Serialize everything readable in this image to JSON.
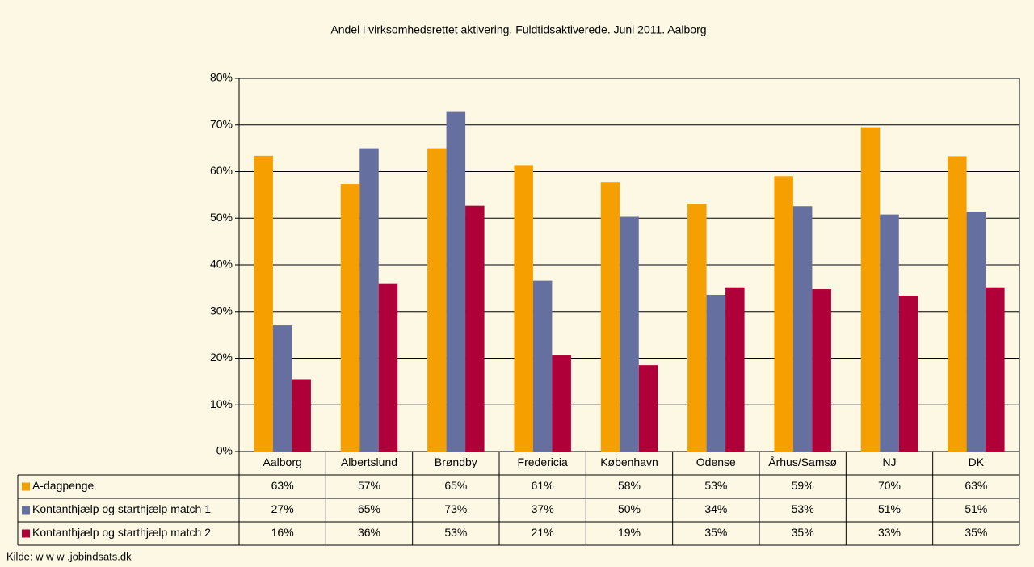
{
  "chart_data": {
    "type": "bar",
    "title": "Andel i virksomhedsrettet aktivering. Fuldtidsaktiverede. Juni 2011. Aalborg",
    "source": "Kilde: w w w .jobindsats.dk",
    "categories": [
      "Aalborg",
      "Albertslund",
      "Brøndby",
      "Fredericia",
      "København",
      "Odense",
      "Århus/Samsø",
      "NJ",
      "DK"
    ],
    "series": [
      {
        "name": "A-dagpenge",
        "color": "#f5a000",
        "values": [
          63.4,
          57.3,
          65,
          61.4,
          57.8,
          53.1,
          59,
          69.5,
          63.3
        ],
        "value_labels": [
          "63%",
          "57%",
          "65%",
          "61%",
          "58%",
          "53%",
          "59%",
          "70%",
          "63%"
        ]
      },
      {
        "name": "Kontanthjælp og starthjælp match 1",
        "color": "#6670a0",
        "values": [
          27,
          65,
          72.8,
          36.6,
          50.3,
          33.6,
          52.6,
          50.8,
          51.4
        ],
        "value_labels": [
          "27%",
          "65%",
          "73%",
          "37%",
          "50%",
          "34%",
          "53%",
          "51%",
          "51%"
        ]
      },
      {
        "name": "Kontanthjælp og starthjælp match 2",
        "color": "#b0003a",
        "values": [
          15.5,
          35.9,
          52.7,
          20.6,
          18.5,
          35.2,
          34.8,
          33.4,
          35.2
        ],
        "value_labels": [
          "16%",
          "36%",
          "53%",
          "21%",
          "19%",
          "35%",
          "35%",
          "33%",
          "35%"
        ]
      }
    ],
    "ylim": [
      0,
      80
    ],
    "yticks": [
      {
        "value": 0,
        "label": "0%"
      },
      {
        "value": 10,
        "label": "10%"
      },
      {
        "value": 20,
        "label": "20%"
      },
      {
        "value": 30,
        "label": "30%"
      },
      {
        "value": 40,
        "label": "40%"
      },
      {
        "value": 50,
        "label": "50%"
      },
      {
        "value": 60,
        "label": "60%"
      },
      {
        "value": 70,
        "label": "70%"
      },
      {
        "value": 80,
        "label": "80%"
      }
    ],
    "grid": true
  }
}
